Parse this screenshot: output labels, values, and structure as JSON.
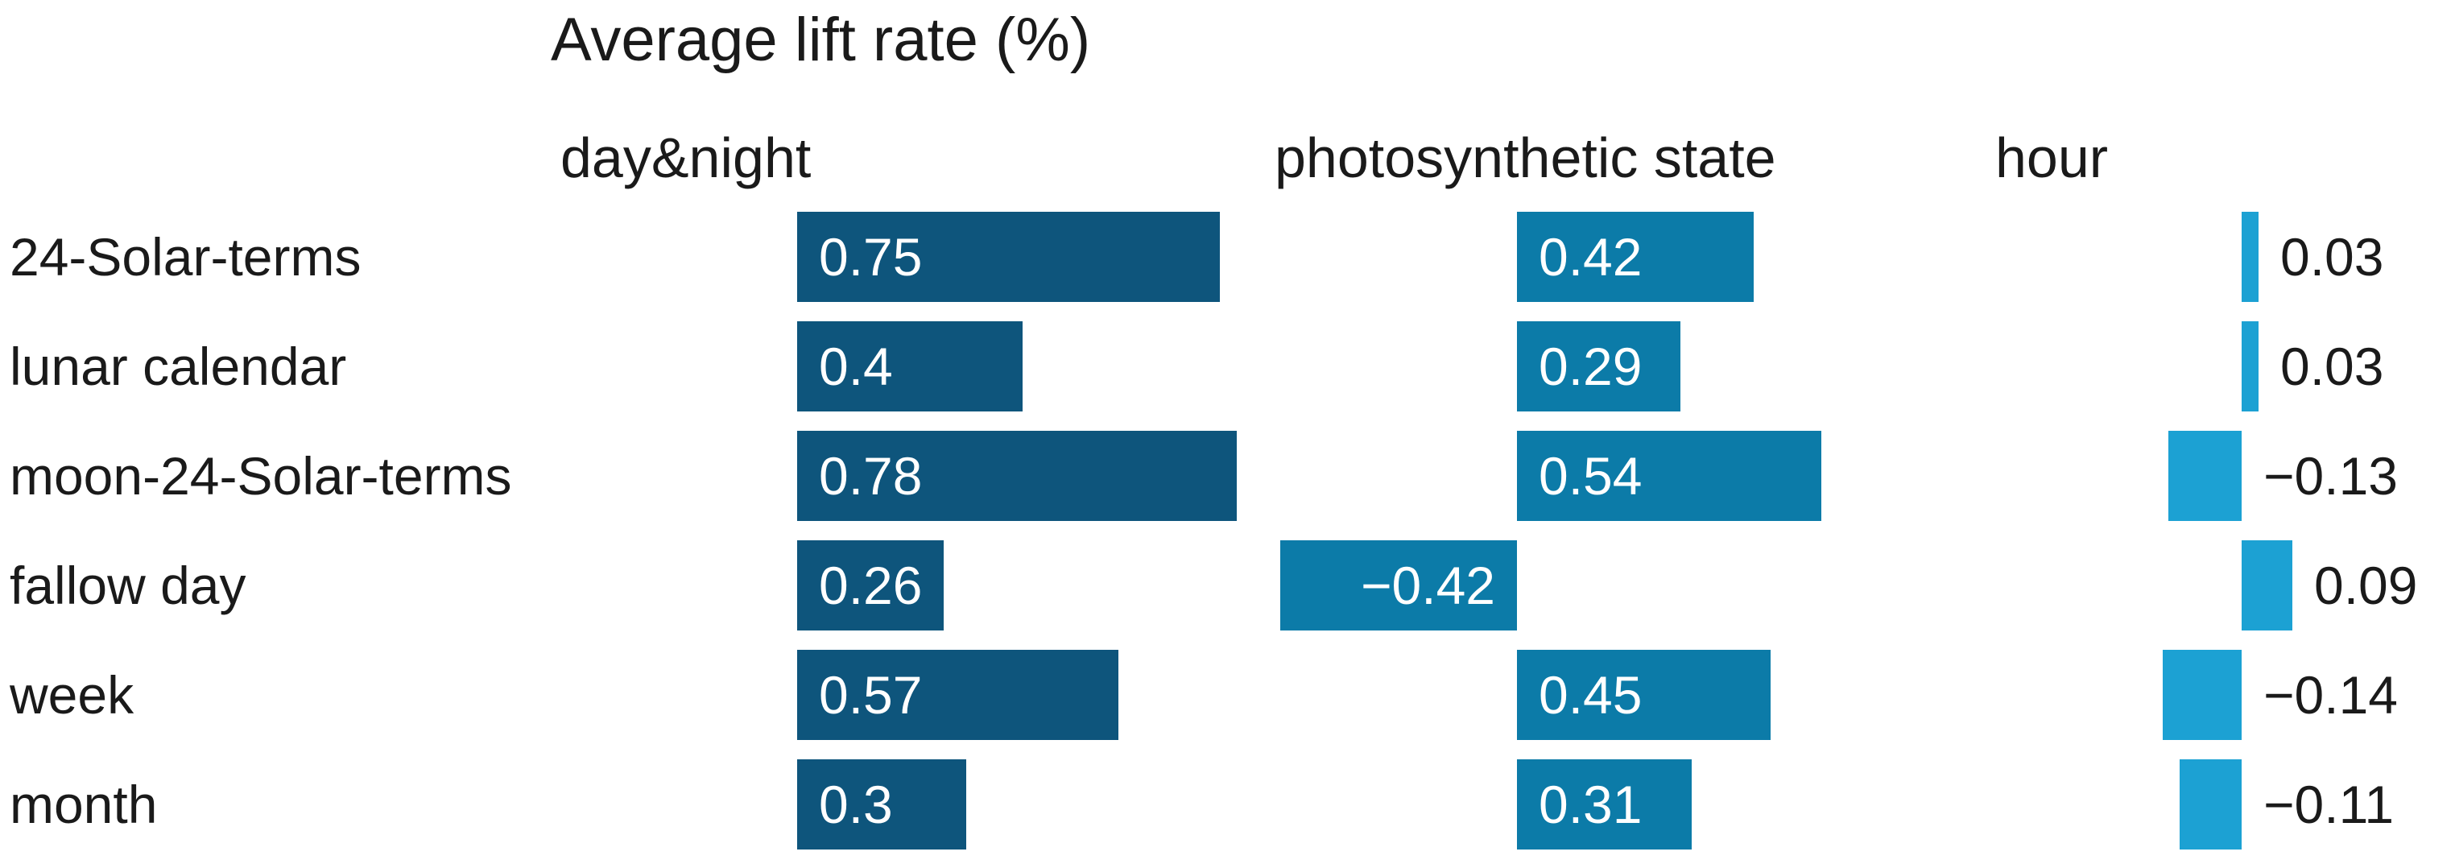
{
  "title": "Average lift rate (%)",
  "colors": {
    "background": "#ffffff",
    "text": "#1a1a1a",
    "inside_label": "#ffffff",
    "day_night_bar": "#0e557c",
    "photosynthetic_state_bar": "#0c7ba8",
    "hour_bar": "#1ca1d3"
  },
  "chart_data": {
    "type": "bar",
    "orientation": "horizontal",
    "title": "Average lift rate (%)",
    "categories": [
      "24-Solar-terms",
      "lunar calendar",
      "moon-24-Solar-terms",
      "fallow day",
      "week",
      "month"
    ],
    "series": [
      {
        "name": "day&night",
        "color": "#0e557c",
        "values": [
          0.75,
          0.4,
          0.78,
          0.26,
          0.57,
          0.3
        ],
        "labels": [
          "0.75",
          "0.4",
          "0.78",
          "0.26",
          "0.57",
          "0.3"
        ]
      },
      {
        "name": "photosynthetic state",
        "color": "#0c7ba8",
        "values": [
          0.42,
          0.29,
          0.54,
          -0.42,
          0.45,
          0.31
        ],
        "labels": [
          "0.42",
          "0.29",
          "0.54",
          "−0.42",
          "0.45",
          "0.31"
        ]
      },
      {
        "name": "hour",
        "color": "#1ca1d3",
        "values": [
          0.03,
          0.03,
          -0.13,
          0.09,
          -0.14,
          -0.11
        ],
        "labels": [
          "0.03",
          "0.03",
          "−0.13",
          "0.09",
          "−0.14",
          "−0.11"
        ]
      }
    ],
    "value_labels_shown": true,
    "axes_hidden": true,
    "grid": false,
    "legend": false
  }
}
